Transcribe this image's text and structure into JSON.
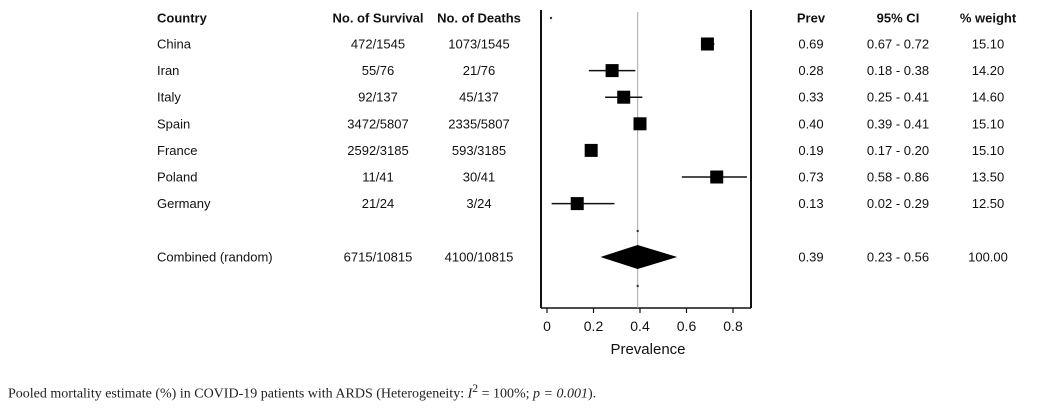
{
  "chart_data": {
    "type": "forest",
    "columns": {
      "country": "Country",
      "survival": "No. of Survival",
      "deaths": "No. of Deaths",
      "prev": "Prev",
      "ci": "95% CI",
      "weight": "% weight"
    },
    "studies": [
      {
        "country": "China",
        "survival": "472/1545",
        "deaths": "1073/1545",
        "prev": 0.69,
        "ci_low": 0.67,
        "ci_high": 0.72,
        "prev_text": "0.69",
        "ci_text": "0.67 - 0.72",
        "weight": "15.10"
      },
      {
        "country": "Iran",
        "survival": "55/76",
        "deaths": "21/76",
        "prev": 0.28,
        "ci_low": 0.18,
        "ci_high": 0.38,
        "prev_text": "0.28",
        "ci_text": "0.18 - 0.38",
        "weight": "14.20"
      },
      {
        "country": "Italy",
        "survival": "92/137",
        "deaths": "45/137",
        "prev": 0.33,
        "ci_low": 0.25,
        "ci_high": 0.41,
        "prev_text": "0.33",
        "ci_text": "0.25 - 0.41",
        "weight": "14.60"
      },
      {
        "country": "Spain",
        "survival": "3472/5807",
        "deaths": "2335/5807",
        "prev": 0.4,
        "ci_low": 0.39,
        "ci_high": 0.41,
        "prev_text": "0.40",
        "ci_text": "0.39 - 0.41",
        "weight": "15.10"
      },
      {
        "country": "France",
        "survival": "2592/3185",
        "deaths": "593/3185",
        "prev": 0.19,
        "ci_low": 0.17,
        "ci_high": 0.2,
        "prev_text": "0.19",
        "ci_text": "0.17 - 0.20",
        "weight": "15.10"
      },
      {
        "country": "Poland",
        "survival": "11/41",
        "deaths": "30/41",
        "prev": 0.73,
        "ci_low": 0.58,
        "ci_high": 0.86,
        "prev_text": "0.73",
        "ci_text": "0.58 - 0.86",
        "weight": "13.50"
      },
      {
        "country": "Germany",
        "survival": "21/24",
        "deaths": "3/24",
        "prev": 0.13,
        "ci_low": 0.02,
        "ci_high": 0.29,
        "prev_text": "0.13",
        "ci_text": "0.02 - 0.29",
        "weight": "12.50"
      }
    ],
    "combined": {
      "country": "Combined (random)",
      "survival": "6715/10815",
      "deaths": "4100/10815",
      "prev": 0.39,
      "ci_low": 0.23,
      "ci_high": 0.56,
      "prev_text": "0.39",
      "ci_text": "0.23 - 0.56",
      "weight": "100.00"
    },
    "reference_line": 0.39,
    "xlim": [
      0,
      0.9
    ],
    "xticks": [
      0,
      0.2,
      0.4,
      0.6,
      0.8
    ],
    "xtick_labels": [
      "0",
      "0.2",
      "0.4",
      "0.6",
      "0.8"
    ],
    "xlabel": "Prevalence"
  },
  "caption": {
    "lead": "Pooled mortality estimate (%) in COVID-19 patients with ARDS (Heterogeneity: ",
    "i_var": "I",
    "i_sup": "2",
    "i_val": " = 100%; ",
    "p_var": "p",
    "p_val": " = 0.001",
    "tail": ")."
  }
}
